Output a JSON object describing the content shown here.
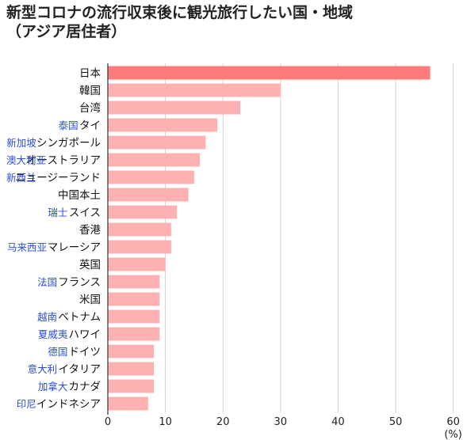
{
  "title_line1": "新型コロナの流行収束後に観光旅行したい国・地域",
  "title_line2": "（アジア居住者）",
  "chart_data": {
    "type": "bar",
    "orientation": "horizontal",
    "categories": [
      "日本",
      "韓国",
      "台湾",
      "タイ",
      "シンガポール",
      "オーストラリア",
      "ニュージーランド",
      "中国本土",
      "スイス",
      "香港",
      "マレーシア",
      "英国",
      "フランス",
      "米国",
      "ベトナム",
      "ハワイ",
      "ドイツ",
      "イタリア",
      "カナダ",
      "インドネシア"
    ],
    "values": [
      56,
      30,
      23,
      19,
      17,
      16,
      15,
      14,
      12,
      11,
      11,
      10,
      9,
      9,
      9,
      9,
      8,
      8,
      8,
      7
    ],
    "annotations": [
      "",
      "",
      "",
      "泰国",
      "新加坡",
      "澳大利亚",
      "新西兰",
      "",
      "瑞士",
      "",
      "马来西亚",
      "",
      "法国",
      "",
      "越南",
      "夏威夷",
      "德国",
      "意大利",
      "加拿大",
      "印尼"
    ],
    "xticks": [
      0,
      10,
      20,
      30,
      40,
      50,
      60
    ],
    "xlim": [
      0,
      60
    ],
    "xlabel": "(%)",
    "grid": true,
    "colors": {
      "highlight": "#ff7a7a",
      "bar": "#ffb0b0",
      "annotation": "#2b4fd6",
      "grid": "#d6d6d6",
      "axis": "#333333"
    }
  }
}
